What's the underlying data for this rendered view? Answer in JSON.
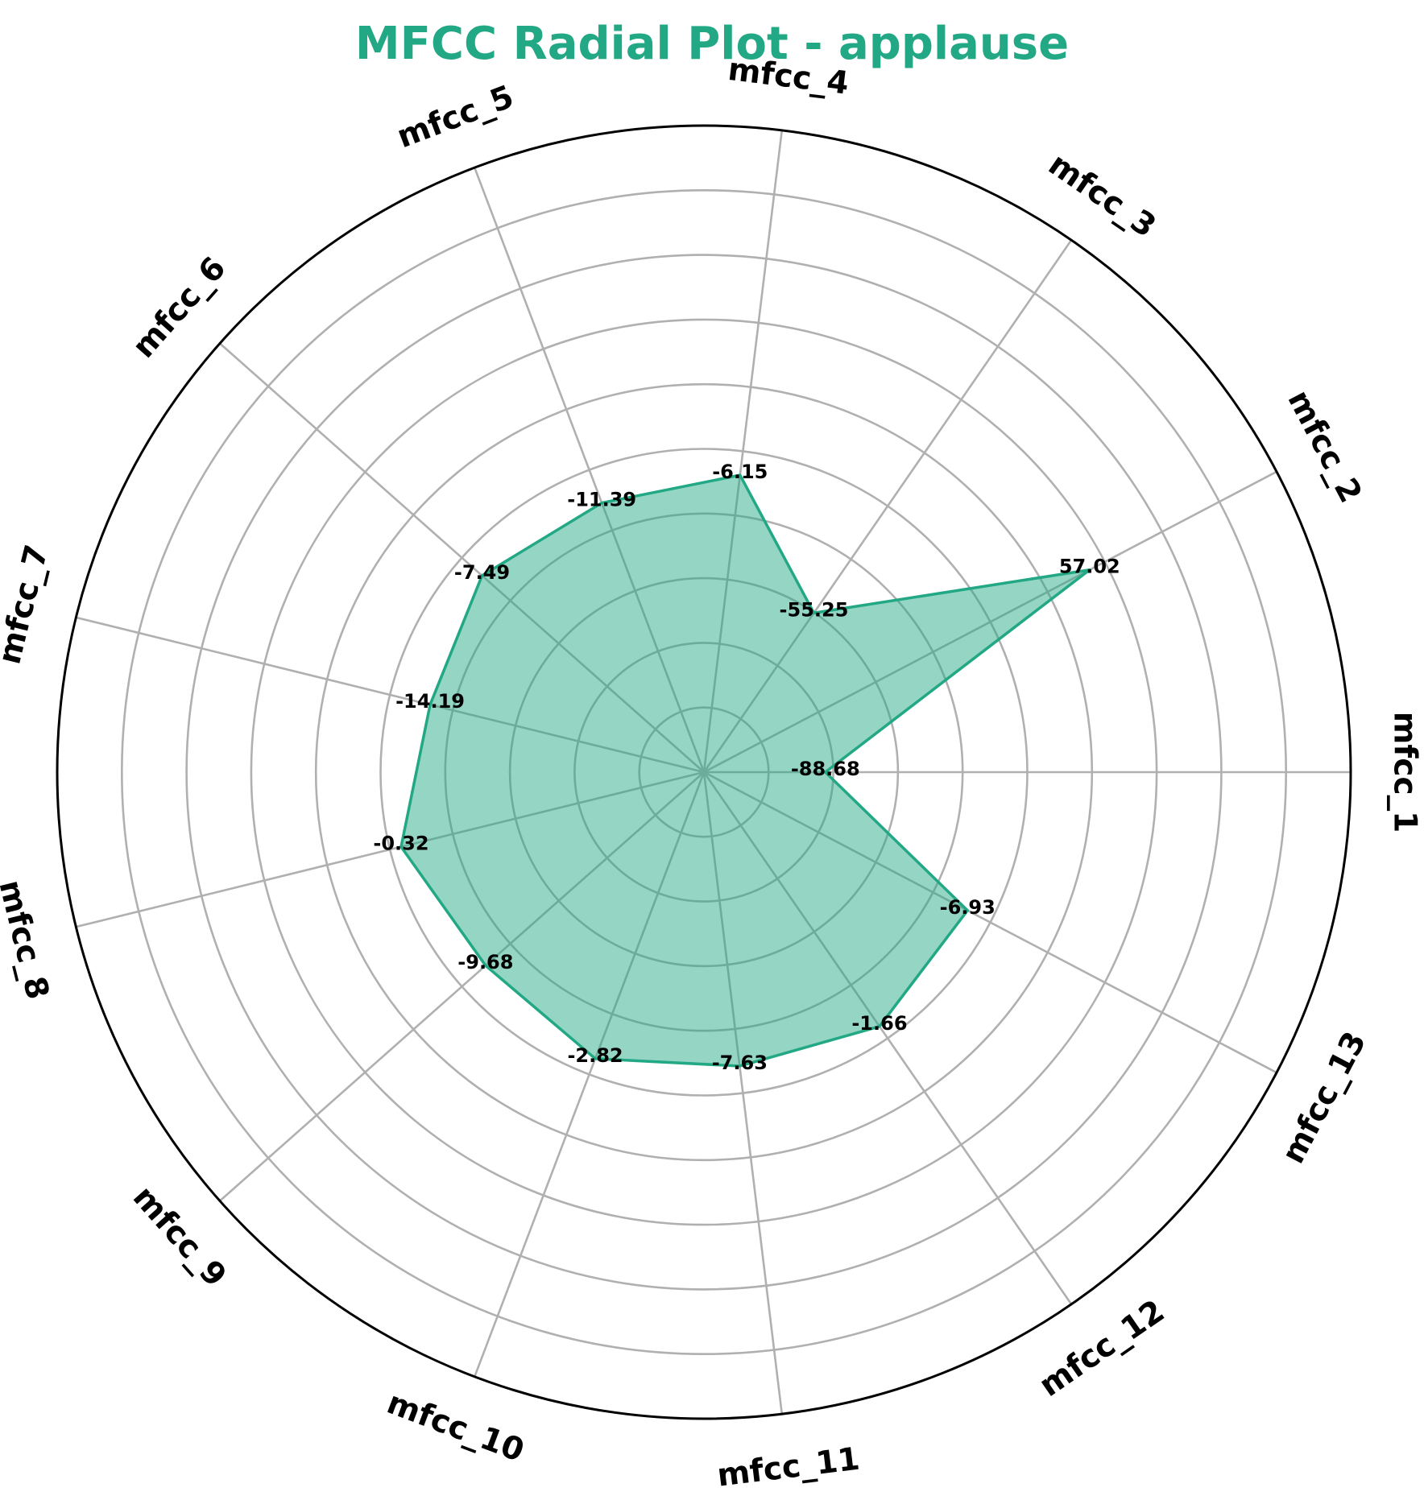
{
  "chart_data": {
    "type": "radar",
    "title": "MFCC Radial Plot - applause",
    "categories": [
      "mfcc_1",
      "mfcc_2",
      "mfcc_3",
      "mfcc_4",
      "mfcc_5",
      "mfcc_6",
      "mfcc_7",
      "mfcc_8",
      "mfcc_9",
      "mfcc_10",
      "mfcc_11",
      "mfcc_12",
      "mfcc_13"
    ],
    "values": [
      -88.68,
      57.02,
      -55.25,
      -6.15,
      -11.39,
      -7.49,
      -14.19,
      -0.32,
      -9.68,
      -2.82,
      -7.63,
      -1.66,
      -6.93
    ],
    "value_labels": [
      "-88.68",
      "57.02",
      "-55.25",
      "-6.15",
      "-11.39",
      "-7.49",
      "-14.19",
      "-0.32",
      "-9.68",
      "-2.82",
      "-7.63",
      "-1.66",
      "-6.93"
    ],
    "radial_range": [
      -145,
      155
    ],
    "radial_gridlines": [
      -115,
      -85,
      -55,
      -25,
      5,
      35,
      65,
      95,
      125
    ],
    "radial_tick_labels_visible": false,
    "grid": true,
    "legend": "none"
  },
  "colors": {
    "title": "#22a884",
    "line": "#22a884",
    "fill": "#22a884",
    "grid": "#b0b0b0",
    "frame": "#000000"
  }
}
